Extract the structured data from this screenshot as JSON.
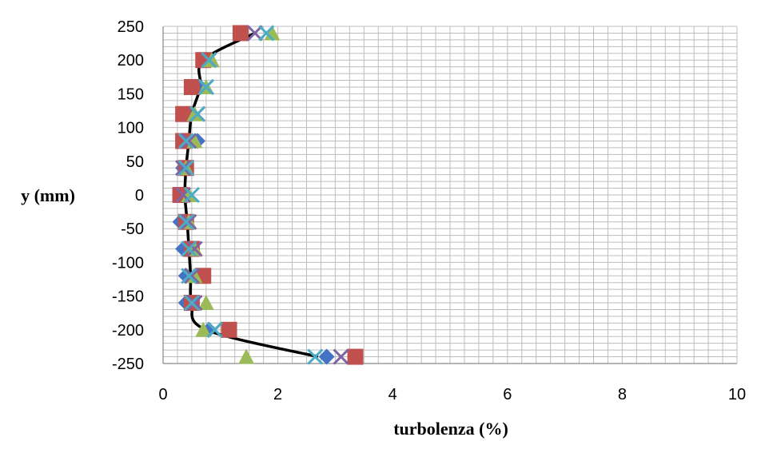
{
  "chart_data": {
    "type": "scatter",
    "title": "",
    "xlabel": "turbolenza (%)",
    "ylabel": "y (mm)",
    "xlim": [
      0,
      10
    ],
    "ylim": [
      -250,
      250
    ],
    "x_ticks": [
      "0",
      "2",
      "4",
      "6",
      "8",
      "10"
    ],
    "y_ticks": [
      "250",
      "200",
      "150",
      "100",
      "50",
      "0",
      "-50",
      "-100",
      "-150",
      "-200",
      "-250"
    ],
    "grid": true,
    "legend": "none",
    "series": [
      {
        "marker": "diamond",
        "color": "#4472C4",
        "points": [
          [
            1.35,
            240
          ],
          [
            0.75,
            200
          ],
          [
            0.65,
            160
          ],
          [
            0.5,
            120
          ],
          [
            0.6,
            80
          ],
          [
            0.35,
            40
          ],
          [
            0.3,
            0
          ],
          [
            0.3,
            -40
          ],
          [
            0.35,
            -80
          ],
          [
            0.4,
            -120
          ],
          [
            0.4,
            -160
          ],
          [
            0.8,
            -200
          ],
          [
            2.85,
            -240
          ]
        ]
      },
      {
        "marker": "square",
        "color": "#C0504D",
        "points": [
          [
            1.35,
            240
          ],
          [
            0.7,
            200
          ],
          [
            0.5,
            160
          ],
          [
            0.35,
            120
          ],
          [
            0.35,
            80
          ],
          [
            0.4,
            40
          ],
          [
            0.3,
            0
          ],
          [
            0.4,
            -40
          ],
          [
            0.5,
            -80
          ],
          [
            0.7,
            -120
          ],
          [
            0.5,
            -160
          ],
          [
            1.15,
            -200
          ],
          [
            3.35,
            -240
          ]
        ]
      },
      {
        "marker": "triangle",
        "color": "#9BBB59",
        "points": [
          [
            1.9,
            240
          ],
          [
            0.85,
            200
          ],
          [
            0.75,
            160
          ],
          [
            0.55,
            120
          ],
          [
            0.55,
            80
          ],
          [
            0.4,
            40
          ],
          [
            0.45,
            0
          ],
          [
            0.45,
            -40
          ],
          [
            0.55,
            -80
          ],
          [
            0.55,
            -120
          ],
          [
            0.75,
            -160
          ],
          [
            0.7,
            -200
          ],
          [
            1.45,
            -240
          ]
        ]
      },
      {
        "marker": "x",
        "color": "#8064A2",
        "points": [
          [
            1.6,
            240
          ],
          [
            0.8,
            200
          ],
          [
            0.75,
            160
          ],
          [
            0.6,
            120
          ],
          [
            0.45,
            80
          ],
          [
            0.35,
            40
          ],
          [
            0.35,
            0
          ],
          [
            0.45,
            -40
          ],
          [
            0.55,
            -80
          ],
          [
            0.5,
            -120
          ],
          [
            0.55,
            -160
          ],
          [
            0.9,
            -200
          ],
          [
            3.1,
            -240
          ]
        ]
      },
      {
        "marker": "x",
        "color": "#4BACC6",
        "points": [
          [
            1.8,
            240
          ],
          [
            0.8,
            200
          ],
          [
            0.75,
            160
          ],
          [
            0.6,
            120
          ],
          [
            0.4,
            80
          ],
          [
            0.4,
            40
          ],
          [
            0.5,
            0
          ],
          [
            0.4,
            -40
          ],
          [
            0.45,
            -80
          ],
          [
            0.45,
            -120
          ],
          [
            0.5,
            -160
          ],
          [
            0.9,
            -200
          ],
          [
            2.65,
            -240
          ]
        ]
      }
    ],
    "fit_line": {
      "color": "#000000",
      "points": [
        [
          1.6,
          240
        ],
        [
          0.7,
          200
        ],
        [
          0.65,
          160
        ],
        [
          0.5,
          120
        ],
        [
          0.45,
          80
        ],
        [
          0.4,
          40
        ],
        [
          0.38,
          0
        ],
        [
          0.42,
          -40
        ],
        [
          0.45,
          -80
        ],
        [
          0.48,
          -120
        ],
        [
          0.5,
          -160
        ],
        [
          0.75,
          -200
        ],
        [
          2.7,
          -240
        ]
      ]
    }
  }
}
